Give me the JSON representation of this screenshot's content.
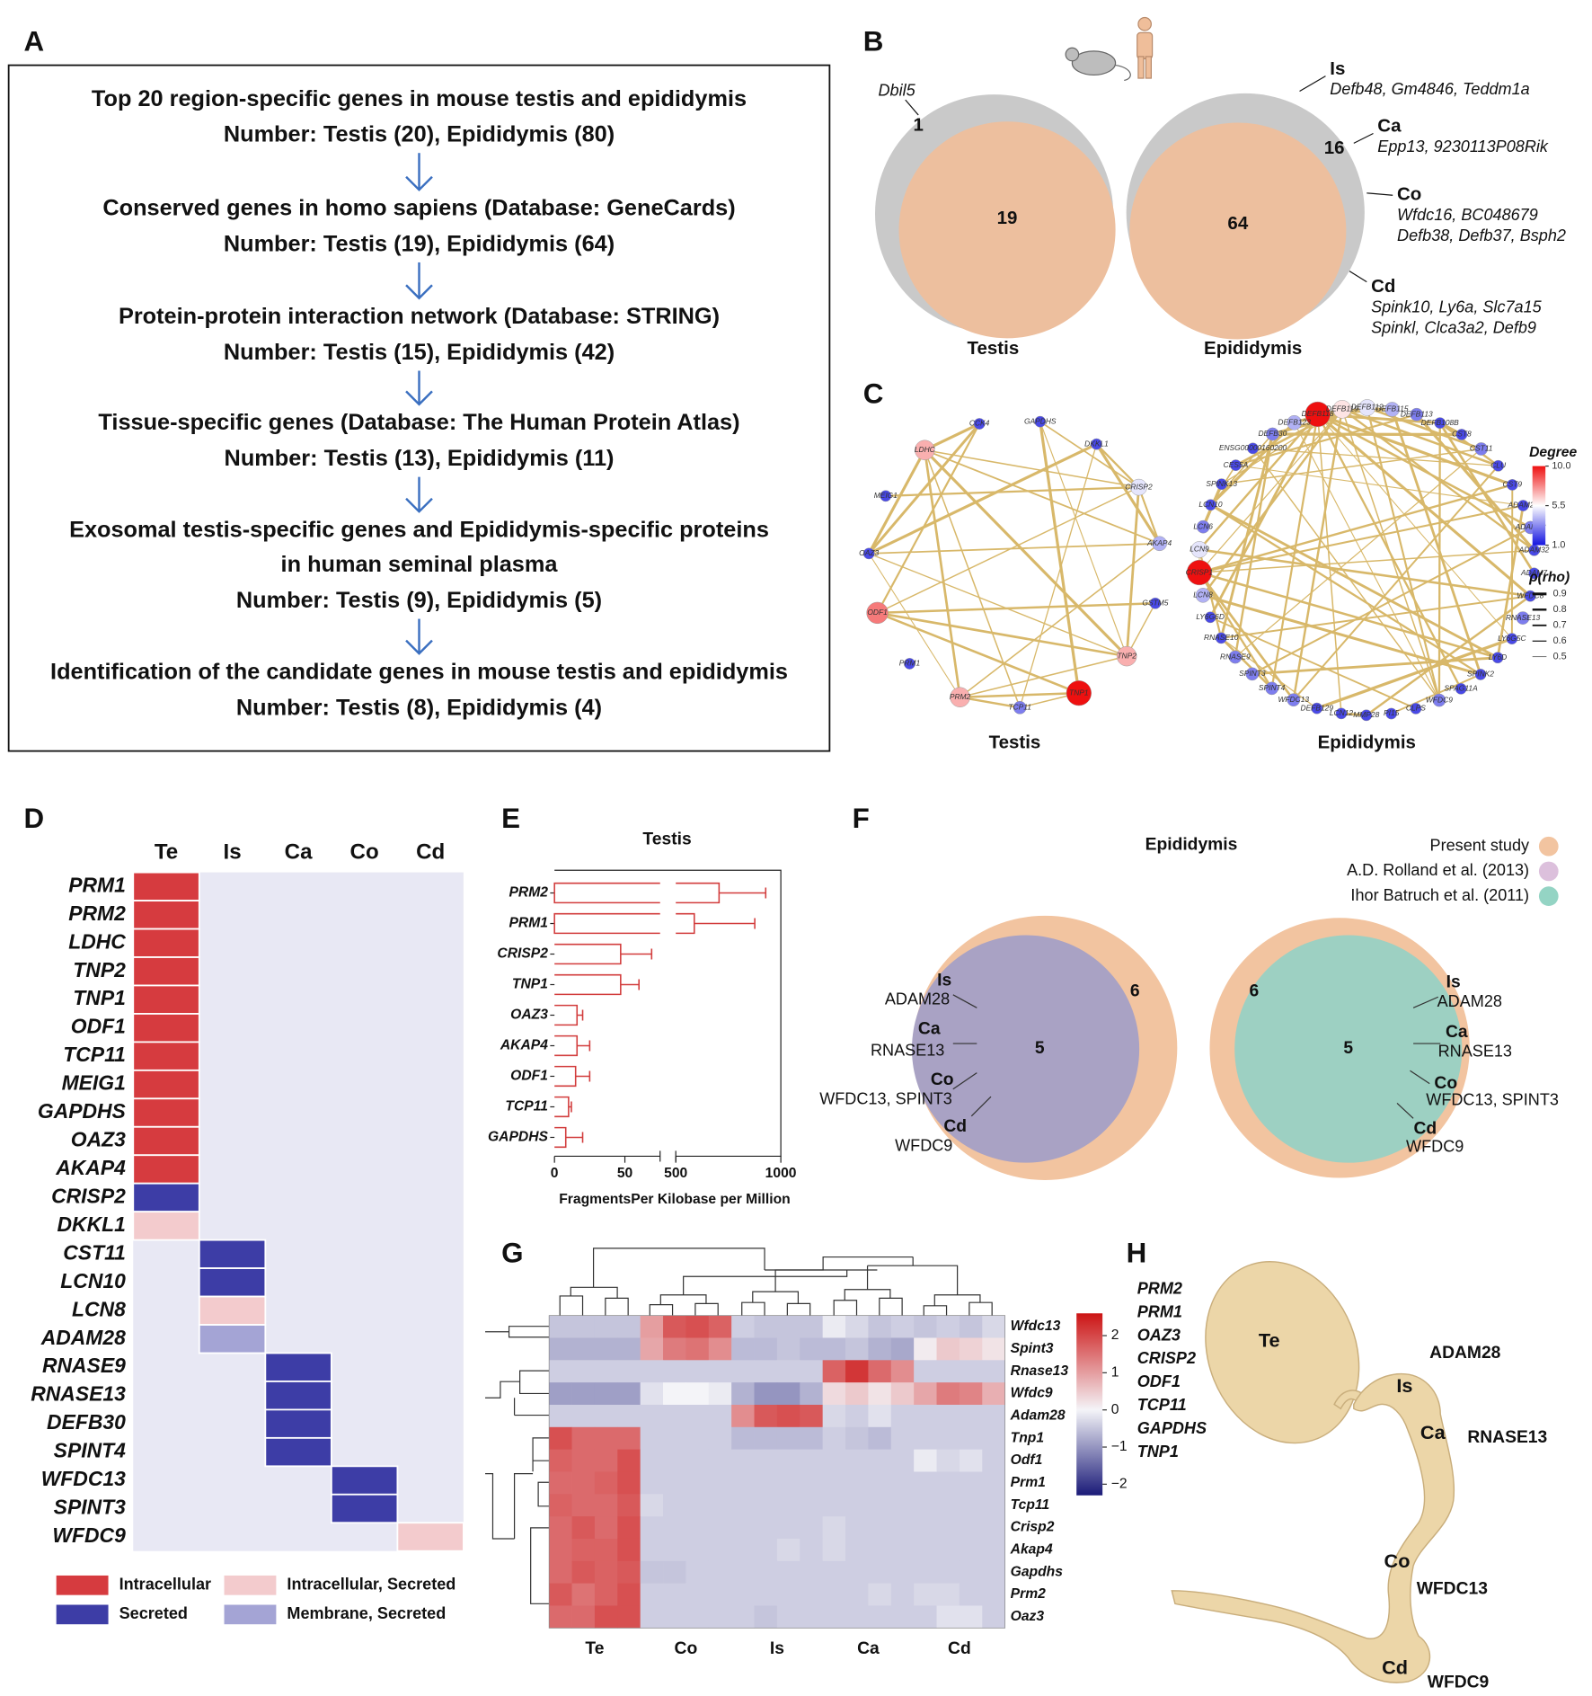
{
  "panel_labels": [
    "A",
    "B",
    "C",
    "D",
    "E",
    "F",
    "G",
    "H"
  ],
  "panel_a": {
    "steps": [
      [
        "Top 20 region-specific genes in mouse testis and epididymis",
        "Number: Testis (20), Epididymis (80)"
      ],
      [
        "Conserved genes in homo sapiens (Database: GeneCards)",
        "Number: Testis (19), Epididymis (64)"
      ],
      [
        "Protein-protein interaction network (Database: STRING)",
        "Number: Testis (15), Epididymis (42)"
      ],
      [
        "Tissue-specific genes (Database: The Human Protein Atlas)",
        "Number: Testis (13), Epididymis (11)"
      ],
      [
        "Exosomal testis-specific genes and Epididymis-specific proteins",
        "in human seminal plasma",
        "Number: Testis (9), Epididymis (5)"
      ],
      [
        "Identification of the candidate genes in mouse testis and epididymis",
        "Number: Testis (8), Epididymis (4)"
      ]
    ]
  },
  "panel_b": {
    "testis": {
      "title": "Testis",
      "mouse_only": 1,
      "conserved": 19,
      "gene": "Dbil5"
    },
    "epididymis": {
      "title": "Epididymis",
      "mouse_only": 16,
      "conserved": 64,
      "regions": [
        {
          "name": "Is",
          "genes": [
            "Defb48, Gm4846, Teddm1a"
          ]
        },
        {
          "name": "Ca",
          "genes": [
            "Epp13, 9230113P08Rik"
          ]
        },
        {
          "name": "Co",
          "genes": [
            "Wfdc16, BC048679",
            "Defb38, Defb37, Bsph2"
          ]
        },
        {
          "name": "Cd",
          "genes": [
            "Spink10, Ly6a, Slc7a15",
            "Spinkl, Clca3a2, Defb9"
          ]
        }
      ]
    }
  },
  "panel_c": {
    "networks": [
      {
        "title": "Testis",
        "nodes": [
          {
            "name": "LDHC",
            "degree": 7
          },
          {
            "name": "CCK4",
            "degree": 2
          },
          {
            "name": "GAPDHS",
            "degree": 2
          },
          {
            "name": "DKKL1",
            "degree": 2
          },
          {
            "name": "CRISP2",
            "degree": 5
          },
          {
            "name": "AKAP4",
            "degree": 4
          },
          {
            "name": "GSTM5",
            "degree": 2
          },
          {
            "name": "TNP2",
            "degree": 7
          },
          {
            "name": "TNP1",
            "degree": 10
          },
          {
            "name": "TCP11",
            "degree": 3
          },
          {
            "name": "PRM2",
            "degree": 7
          },
          {
            "name": "PRM1",
            "degree": 2
          },
          {
            "name": "ODF1",
            "degree": 8
          },
          {
            "name": "OAZ3",
            "degree": 2
          },
          {
            "name": "MEIG1",
            "degree": 2
          }
        ]
      },
      {
        "title": "Epididymis",
        "nodes": [
          {
            "name": "DEFB118",
            "degree": 10
          },
          {
            "name": "DEFB119",
            "degree": 6
          },
          {
            "name": "DEFB112",
            "degree": 5
          },
          {
            "name": "DEFB115",
            "degree": 4
          },
          {
            "name": "DEFB113",
            "degree": 3
          },
          {
            "name": "DEFB108B",
            "degree": 2
          },
          {
            "name": "CST8",
            "degree": 2
          },
          {
            "name": "CST11",
            "degree": 3
          },
          {
            "name": "CLU",
            "degree": 2
          },
          {
            "name": "CST9",
            "degree": 2
          },
          {
            "name": "ADAM29",
            "degree": 2
          },
          {
            "name": "ADAM28",
            "degree": 3
          },
          {
            "name": "ADAM32",
            "degree": 2
          },
          {
            "name": "ADAM7",
            "degree": 2
          },
          {
            "name": "WFDC8",
            "degree": 2
          },
          {
            "name": "RNASE13",
            "degree": 3
          },
          {
            "name": "LY6G5C",
            "degree": 2
          },
          {
            "name": "LY6D",
            "degree": 2
          },
          {
            "name": "SPINK2",
            "degree": 2
          },
          {
            "name": "SPAG11A",
            "degree": 2
          },
          {
            "name": "WFDC9",
            "degree": 3
          },
          {
            "name": "CLPS",
            "degree": 2
          },
          {
            "name": "PI15",
            "degree": 2
          },
          {
            "name": "MMP28",
            "degree": 2
          },
          {
            "name": "LCN12",
            "degree": 2
          },
          {
            "name": "DEFB129",
            "degree": 2
          },
          {
            "name": "WFDC13",
            "degree": 3
          },
          {
            "name": "SPINT4",
            "degree": 3
          },
          {
            "name": "SPINT3",
            "degree": 3
          },
          {
            "name": "RNASE9",
            "degree": 3
          },
          {
            "name": "RNASE10",
            "degree": 2
          },
          {
            "name": "LY6G6D",
            "degree": 2
          },
          {
            "name": "LCN8",
            "degree": 4
          },
          {
            "name": "CRISP1",
            "degree": 10
          },
          {
            "name": "LCN9",
            "degree": 5
          },
          {
            "name": "LCN6",
            "degree": 3
          },
          {
            "name": "LCN10",
            "degree": 2
          },
          {
            "name": "SPINK13",
            "degree": 2
          },
          {
            "name": "CES5A",
            "degree": 2
          },
          {
            "name": "ENSG00000160200",
            "degree": 2
          },
          {
            "name": "DEFB30",
            "degree": 3
          },
          {
            "name": "DEFB123",
            "degree": 4
          }
        ]
      }
    ],
    "degree_legend": {
      "title": "Degree",
      "ticks": [
        {
          "value": 10,
          "label": "10.0"
        },
        5.5,
        {
          "value": 1,
          "label": "1.0"
        }
      ],
      "colors": [
        "#1515e0",
        "#ffffff",
        "#ee1010"
      ]
    },
    "rho_legend": {
      "title": "ρ(rho)",
      "ticks": [
        0.9,
        0.8,
        0.7,
        0.6,
        0.5
      ]
    }
  },
  "panel_d": {
    "columns": [
      "Te",
      "Is",
      "Ca",
      "Co",
      "Cd"
    ],
    "rows": [
      {
        "gene": "PRM1",
        "column": "Te",
        "location": "Intracellular"
      },
      {
        "gene": "PRM2",
        "column": "Te",
        "location": "Intracellular"
      },
      {
        "gene": "LDHC",
        "column": "Te",
        "location": "Intracellular"
      },
      {
        "gene": "TNP2",
        "column": "Te",
        "location": "Intracellular"
      },
      {
        "gene": "TNP1",
        "column": "Te",
        "location": "Intracellular"
      },
      {
        "gene": "ODF1",
        "column": "Te",
        "location": "Intracellular"
      },
      {
        "gene": "TCP11",
        "column": "Te",
        "location": "Intracellular"
      },
      {
        "gene": "MEIG1",
        "column": "Te",
        "location": "Intracellular"
      },
      {
        "gene": "GAPDHS",
        "column": "Te",
        "location": "Intracellular"
      },
      {
        "gene": "OAZ3",
        "column": "Te",
        "location": "Intracellular"
      },
      {
        "gene": "AKAP4",
        "column": "Te",
        "location": "Intracellular"
      },
      {
        "gene": "CRISP2",
        "column": "Te",
        "location": "Secreted"
      },
      {
        "gene": "DKKL1",
        "column": "Te",
        "location": "Intracellular, Secreted"
      },
      {
        "gene": "CST11",
        "column": "Is",
        "location": "Secreted"
      },
      {
        "gene": "LCN10",
        "column": "Is",
        "location": "Secreted"
      },
      {
        "gene": "LCN8",
        "column": "Is",
        "location": "Intracellular, Secreted"
      },
      {
        "gene": "ADAM28",
        "column": "Is",
        "location": "Membrane, Secreted"
      },
      {
        "gene": "RNASE9",
        "column": "Ca",
        "location": "Secreted"
      },
      {
        "gene": "RNASE13",
        "column": "Ca",
        "location": "Secreted"
      },
      {
        "gene": "DEFB30",
        "column": "Ca",
        "location": "Secreted"
      },
      {
        "gene": "SPINT4",
        "column": "Ca",
        "location": "Secreted"
      },
      {
        "gene": "WFDC13",
        "column": "Co",
        "location": "Secreted"
      },
      {
        "gene": "SPINT3",
        "column": "Co",
        "location": "Secreted"
      },
      {
        "gene": "WFDC9",
        "column": "Cd",
        "location": "Intracellular, Secreted"
      }
    ],
    "legend": [
      {
        "label": "Intracellular",
        "color": "#d63b3f"
      },
      {
        "label": "Intracellular, Secreted",
        "color": "#f3cbcd"
      },
      {
        "label": "Secreted",
        "color": "#3d3da6"
      },
      {
        "label": "Membrane, Secreted",
        "color": "#a4a4d5"
      }
    ],
    "background": "#e8e8f4"
  },
  "chart_data": [
    {
      "type": "bar",
      "title": "Testis",
      "categories": [
        "PRM2",
        "PRM1",
        "CRISP2",
        "TNP1",
        "OAZ3",
        "AKAP4",
        "ODF1",
        "TCP11",
        "GAPDHS"
      ],
      "values": [
        706,
        588,
        47,
        47,
        16,
        16,
        15,
        10,
        8
      ],
      "errors": [
        222,
        288,
        22,
        13,
        4,
        9,
        10,
        2,
        12
      ],
      "xlim": [
        0,
        1000
      ],
      "axis_break": [
        75,
        500
      ],
      "xticks": [
        0,
        50,
        500,
        1000
      ],
      "xlabel": "FragmentsPer Kilobase per Million",
      "color": "#d23c3c"
    },
    {
      "type": "heatmap",
      "rows": [
        "Wfdc13",
        "Spint3",
        "Rnase13",
        "Wfdc9",
        "Adam28",
        "Tnp1",
        "Odf1",
        "Prm1",
        "Tcp11",
        "Crisp2",
        "Akap4",
        "Gapdhs",
        "Prm2",
        "Oaz3"
      ],
      "column_groups": [
        "Te",
        "Co",
        "Is",
        "Ca",
        "Cd"
      ],
      "values": [
        [
          -0.5,
          -0.5,
          -0.5,
          -0.5,
          1.0,
          1.8,
          1.9,
          1.7,
          -0.4,
          -0.5,
          -0.5,
          -0.5,
          -0.1,
          -0.3,
          -0.5,
          -0.4,
          -0.5,
          -0.4,
          -0.5,
          -0.3
        ],
        [
          -0.7,
          -0.7,
          -0.7,
          -0.7,
          0.9,
          1.4,
          1.5,
          1.2,
          -0.6,
          -0.6,
          -0.5,
          -0.6,
          -0.6,
          -0.5,
          -0.7,
          -0.8,
          0.1,
          0.5,
          0.4,
          0.2
        ],
        [
          -0.4,
          -0.4,
          -0.4,
          -0.4,
          -0.4,
          -0.4,
          -0.4,
          -0.4,
          -0.4,
          -0.4,
          -0.4,
          -0.4,
          1.7,
          2.2,
          1.6,
          1.2,
          -0.4,
          -0.4,
          -0.4,
          -0.4
        ],
        [
          -0.9,
          -0.9,
          -0.9,
          -0.9,
          -0.2,
          0.0,
          0.0,
          -0.1,
          -0.7,
          -1.0,
          -1.0,
          -0.7,
          0.3,
          0.5,
          0.2,
          0.5,
          0.9,
          1.4,
          1.3,
          0.8
        ],
        [
          -0.4,
          -0.4,
          -0.4,
          -0.4,
          -0.4,
          -0.4,
          -0.4,
          -0.4,
          1.2,
          1.8,
          1.9,
          1.8,
          -0.3,
          -0.4,
          -0.2,
          -0.4,
          -0.4,
          -0.4,
          -0.4,
          -0.4
        ],
        [
          1.9,
          1.6,
          1.6,
          1.6,
          -0.4,
          -0.4,
          -0.4,
          -0.4,
          -0.6,
          -0.6,
          -0.6,
          -0.6,
          -0.4,
          -0.5,
          -0.6,
          -0.4,
          -0.4,
          -0.4,
          -0.4,
          -0.4
        ],
        [
          1.7,
          1.6,
          1.6,
          1.9,
          -0.4,
          -0.4,
          -0.4,
          -0.4,
          -0.4,
          -0.4,
          -0.4,
          -0.4,
          -0.4,
          -0.4,
          -0.4,
          -0.4,
          -0.1,
          -0.3,
          -0.2,
          -0.4
        ],
        [
          1.6,
          1.6,
          1.7,
          1.9,
          -0.4,
          -0.4,
          -0.4,
          -0.4,
          -0.4,
          -0.4,
          -0.4,
          -0.4,
          -0.4,
          -0.4,
          -0.4,
          -0.4,
          -0.4,
          -0.4,
          -0.4,
          -0.4
        ],
        [
          1.7,
          1.6,
          1.6,
          1.8,
          -0.3,
          -0.4,
          -0.4,
          -0.4,
          -0.4,
          -0.4,
          -0.4,
          -0.4,
          -0.4,
          -0.4,
          -0.4,
          -0.4,
          -0.4,
          -0.4,
          -0.4,
          -0.4
        ],
        [
          1.6,
          1.8,
          1.6,
          1.9,
          -0.4,
          -0.4,
          -0.4,
          -0.4,
          -0.4,
          -0.4,
          -0.4,
          -0.4,
          -0.3,
          -0.4,
          -0.4,
          -0.4,
          -0.4,
          -0.4,
          -0.4,
          -0.4
        ],
        [
          1.6,
          1.7,
          1.7,
          1.9,
          -0.4,
          -0.4,
          -0.4,
          -0.4,
          -0.4,
          -0.4,
          -0.3,
          -0.4,
          -0.3,
          -0.4,
          -0.4,
          -0.4,
          -0.4,
          -0.4,
          -0.4,
          -0.4
        ],
        [
          1.6,
          1.8,
          1.7,
          1.8,
          -0.5,
          -0.5,
          -0.4,
          -0.4,
          -0.4,
          -0.4,
          -0.4,
          -0.4,
          -0.4,
          -0.4,
          -0.4,
          -0.4,
          -0.4,
          -0.4,
          -0.4,
          -0.4
        ],
        [
          1.8,
          1.5,
          1.7,
          1.9,
          -0.4,
          -0.4,
          -0.4,
          -0.4,
          -0.4,
          -0.4,
          -0.4,
          -0.4,
          -0.4,
          -0.4,
          -0.3,
          -0.4,
          -0.3,
          -0.3,
          -0.4,
          -0.4
        ],
        [
          1.6,
          1.6,
          1.9,
          1.9,
          -0.4,
          -0.4,
          -0.4,
          -0.4,
          -0.4,
          -0.5,
          -0.4,
          -0.4,
          -0.4,
          -0.4,
          -0.4,
          -0.4,
          -0.4,
          -0.2,
          -0.2,
          -0.4
        ]
      ],
      "zlim": [
        -2.3,
        2.6
      ],
      "zticks": [
        2,
        1,
        0,
        {
          "value": -1,
          "label": "−1"
        },
        {
          "value": -2,
          "label": "−2"
        }
      ],
      "colors": [
        "#1a1a78",
        "#f4f4f8",
        "#cc1414"
      ]
    }
  ],
  "panel_f": {
    "title": "Epididymis",
    "legend": [
      {
        "label": "Present study",
        "color": "#f2c4a0"
      },
      {
        "label": "A.D. Rolland et al. (2013)",
        "color": "#dcc0dc"
      },
      {
        "label": "Ihor Batruch et al. (2011)",
        "color": "#94d4c4"
      }
    ],
    "shared": 5,
    "present_only": 6,
    "regions": [
      {
        "name": "Is",
        "genes": "ADAM28"
      },
      {
        "name": "Ca",
        "genes": "RNASE13"
      },
      {
        "name": "Co",
        "genes": "WFDC13, SPINT3"
      },
      {
        "name": "Cd",
        "genes": "WFDC9"
      }
    ]
  },
  "panel_h": {
    "genes": [
      "PRM2",
      "PRM1",
      "OAZ3",
      "CRISP2",
      "ODF1",
      "TCP11",
      "GAPDHS",
      "TNP1"
    ],
    "regions": [
      {
        "name": "Te"
      },
      {
        "name": "Is",
        "gene": "ADAM28"
      },
      {
        "name": "Ca",
        "gene": "RNASE13"
      },
      {
        "name": "Co",
        "gene": "WFDC13"
      },
      {
        "name": "Cd",
        "gene": "WFDC9"
      }
    ]
  }
}
